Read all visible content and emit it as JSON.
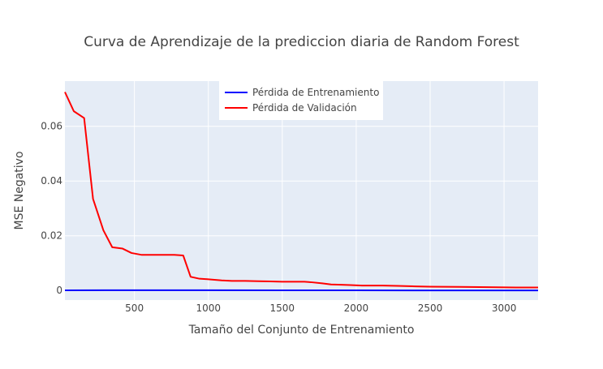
{
  "chart_data": {
    "type": "line",
    "title": "Curva de Aprendizaje de la prediccion diaria de Random Forest",
    "xlabel": "Tamaño del Conjunto de Entrenamiento",
    "ylabel": "MSE Negativo",
    "xlim": [
      30,
      3230
    ],
    "ylim": [
      -0.0035,
      0.0765
    ],
    "x_ticks": [
      500,
      1000,
      1500,
      2000,
      2500,
      3000
    ],
    "y_ticks": [
      0,
      0.02,
      0.04,
      0.06
    ],
    "y_tick_labels": [
      "0",
      "0.02",
      "0.04",
      "0.06"
    ],
    "grid": true,
    "legend_position": "top-center",
    "colors": {
      "background": "#e5ecf6",
      "grid": "#ffffff",
      "zeroline": "#ffffff"
    },
    "series": [
      {
        "name": "Pérdida de Entrenamiento",
        "color": "#0000ff",
        "x": [
          30,
          500,
          1000,
          1500,
          2000,
          2500,
          3000,
          3230
        ],
        "y": [
          5e-05,
          0.0001,
          8e-05,
          6e-05,
          4e-05,
          3e-05,
          2e-05,
          2e-05
        ]
      },
      {
        "name": "Pérdida de Validación",
        "color": "#ff0000",
        "x": [
          30,
          90,
          160,
          220,
          290,
          350,
          420,
          480,
          550,
          620,
          700,
          770,
          830,
          880,
          940,
          1000,
          1090,
          1160,
          1250,
          1340,
          1420,
          1500,
          1580,
          1650,
          1700,
          1770,
          1830,
          1900,
          1960,
          2040,
          2120,
          2180,
          2280,
          2400,
          2500,
          2700,
          2900,
          3100,
          3230
        ],
        "y": [
          0.0725,
          0.0655,
          0.063,
          0.0335,
          0.022,
          0.0158,
          0.0153,
          0.0137,
          0.013,
          0.013,
          0.013,
          0.013,
          0.0128,
          0.005,
          0.0043,
          0.0041,
          0.0037,
          0.0035,
          0.0035,
          0.0034,
          0.0033,
          0.0032,
          0.0032,
          0.0032,
          0.003,
          0.0026,
          0.0022,
          0.0021,
          0.002,
          0.0018,
          0.0018,
          0.0018,
          0.0017,
          0.0015,
          0.0014,
          0.0013,
          0.0012,
          0.0011,
          0.0011
        ]
      }
    ]
  }
}
